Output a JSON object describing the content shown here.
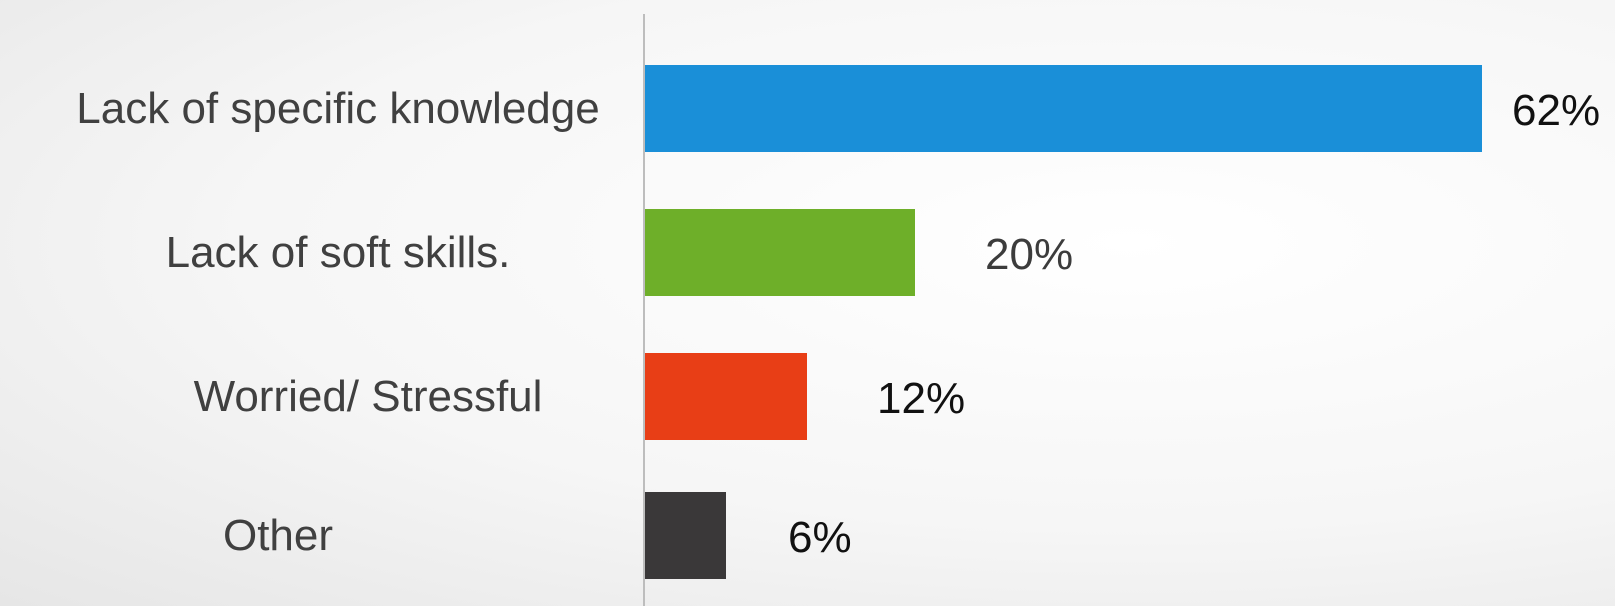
{
  "chart_data": {
    "type": "bar",
    "orientation": "horizontal",
    "categories": [
      "Lack of specific knowledge",
      "Lack of soft skills.",
      "Worried/ Stressful",
      "Other"
    ],
    "values": [
      62,
      20,
      12,
      6
    ],
    "data_labels": [
      "62%",
      "20%",
      "12%",
      "6%"
    ],
    "colors": [
      "#1a8fd8",
      "#6eaf29",
      "#e83e16",
      "#3a3839"
    ],
    "xlim": [
      0,
      62
    ],
    "grid": false,
    "legend": "none"
  }
}
